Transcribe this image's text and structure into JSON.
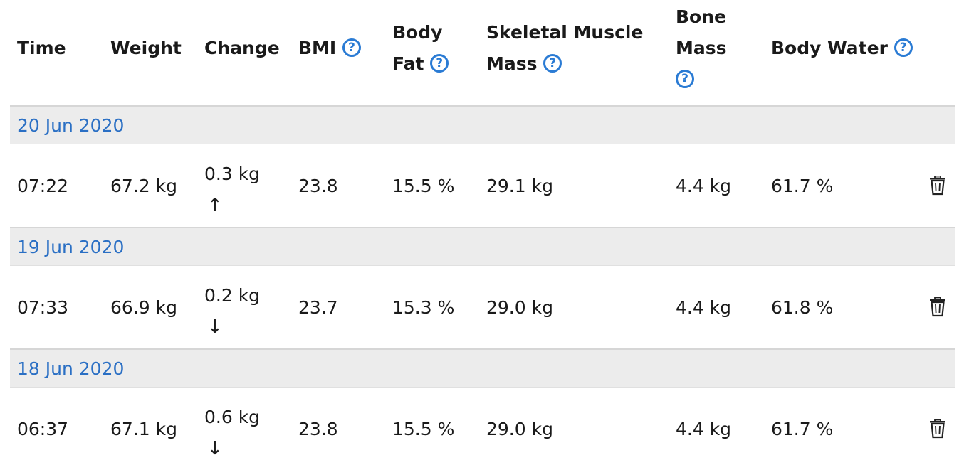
{
  "headers": {
    "time": "Time",
    "weight": "Weight",
    "change": "Change",
    "bmi": "BMI",
    "body_fat_1": "Body",
    "body_fat_2": "Fat",
    "muscle_1": "Skeletal Muscle",
    "muscle_2": "Mass",
    "bone_1": "Bone",
    "bone_2": "Mass",
    "water": "Body Water",
    "help_glyph": "?"
  },
  "groups": [
    {
      "date": "20 Jun 2020",
      "time": "07:22",
      "weight": "67.2 kg",
      "change": "0.3 kg",
      "direction": "↑",
      "bmi": "23.8",
      "body_fat": "15.5 %",
      "muscle": "29.1 kg",
      "bone": "4.4 kg",
      "water": "61.7 %"
    },
    {
      "date": "19 Jun 2020",
      "time": "07:33",
      "weight": "66.9 kg",
      "change": "0.2 kg",
      "direction": "↓",
      "bmi": "23.7",
      "body_fat": "15.3 %",
      "muscle": "29.0 kg",
      "bone": "4.4 kg",
      "water": "61.8 %"
    },
    {
      "date": "18 Jun 2020",
      "time": "06:37",
      "weight": "67.1 kg",
      "change": "0.6 kg",
      "direction": "↓",
      "bmi": "23.8",
      "body_fat": "15.5 %",
      "muscle": "29.0 kg",
      "bone": "4.4 kg",
      "water": "61.7 %"
    }
  ],
  "colors": {
    "accent": "#2a7bd4",
    "date_text": "#2a6fc4",
    "group_bg": "#ececec"
  },
  "icons": {
    "help": "help-circle-icon",
    "delete": "trash-icon"
  }
}
